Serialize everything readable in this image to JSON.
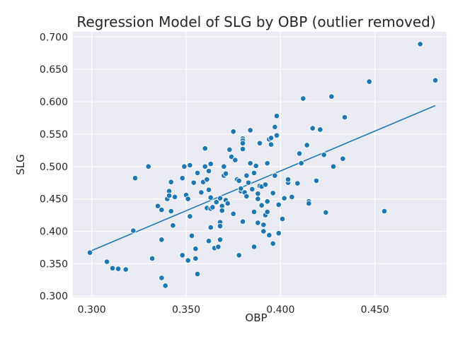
{
  "chart_data": {
    "type": "scatter",
    "title": "Regression Model of SLG by OBP (outlier removed)",
    "xlabel": "OBP",
    "ylabel": "SLG",
    "xlim": [
      0.29,
      0.488
    ],
    "ylim": [
      0.298,
      0.708
    ],
    "xticks": [
      0.3,
      0.35,
      0.4,
      0.45
    ],
    "yticks": [
      0.3,
      0.35,
      0.4,
      0.45,
      0.5,
      0.55,
      0.6,
      0.65,
      0.7
    ],
    "xtick_labels": [
      "0.300",
      "0.350",
      "0.400",
      "0.450"
    ],
    "ytick_labels": [
      "0.300",
      "0.350",
      "0.400",
      "0.450",
      "0.500",
      "0.550",
      "0.600",
      "0.650",
      "0.700"
    ],
    "grid": true,
    "background": "#eaeaf2",
    "point_color": "#1f77b4",
    "line_color": "#1f77b4",
    "points": [
      [
        0.299,
        0.367
      ],
      [
        0.308,
        0.353
      ],
      [
        0.311,
        0.343
      ],
      [
        0.314,
        0.342
      ],
      [
        0.318,
        0.341
      ],
      [
        0.322,
        0.401
      ],
      [
        0.323,
        0.482
      ],
      [
        0.33,
        0.5
      ],
      [
        0.332,
        0.358
      ],
      [
        0.335,
        0.439
      ],
      [
        0.337,
        0.433
      ],
      [
        0.337,
        0.387
      ],
      [
        0.337,
        0.328
      ],
      [
        0.339,
        0.316
      ],
      [
        0.34,
        0.45
      ],
      [
        0.341,
        0.462
      ],
      [
        0.341,
        0.455
      ],
      [
        0.342,
        0.431
      ],
      [
        0.342,
        0.476
      ],
      [
        0.343,
        0.409
      ],
      [
        0.344,
        0.453
      ],
      [
        0.348,
        0.482
      ],
      [
        0.348,
        0.363
      ],
      [
        0.349,
        0.5
      ],
      [
        0.35,
        0.456
      ],
      [
        0.351,
        0.355
      ],
      [
        0.351,
        0.45
      ],
      [
        0.352,
        0.502
      ],
      [
        0.352,
        0.423
      ],
      [
        0.353,
        0.393
      ],
      [
        0.354,
        0.475
      ],
      [
        0.355,
        0.373
      ],
      [
        0.355,
        0.358
      ],
      [
        0.356,
        0.334
      ],
      [
        0.356,
        0.49
      ],
      [
        0.358,
        0.46
      ],
      [
        0.359,
        0.476
      ],
      [
        0.36,
        0.528
      ],
      [
        0.36,
        0.5
      ],
      [
        0.361,
        0.48
      ],
      [
        0.361,
        0.436
      ],
      [
        0.362,
        0.385
      ],
      [
        0.362,
        0.493
      ],
      [
        0.362,
        0.464
      ],
      [
        0.363,
        0.452
      ],
      [
        0.363,
        0.435
      ],
      [
        0.363,
        0.504
      ],
      [
        0.363,
        0.406
      ],
      [
        0.364,
        0.437
      ],
      [
        0.365,
        0.374
      ],
      [
        0.366,
        0.445
      ],
      [
        0.367,
        0.376
      ],
      [
        0.368,
        0.414
      ],
      [
        0.368,
        0.408
      ],
      [
        0.368,
        0.451
      ],
      [
        0.368,
        0.387
      ],
      [
        0.369,
        0.439
      ],
      [
        0.369,
        0.432
      ],
      [
        0.37,
        0.486
      ],
      [
        0.37,
        0.5
      ],
      [
        0.371,
        0.489
      ],
      [
        0.371,
        0.448
      ],
      [
        0.372,
        0.443
      ],
      [
        0.373,
        0.526
      ],
      [
        0.374,
        0.515
      ],
      [
        0.375,
        0.554
      ],
      [
        0.375,
        0.427
      ],
      [
        0.376,
        0.51
      ],
      [
        0.377,
        0.48
      ],
      [
        0.378,
        0.478
      ],
      [
        0.378,
        0.363
      ],
      [
        0.379,
        0.462
      ],
      [
        0.379,
        0.466
      ],
      [
        0.38,
        0.543
      ],
      [
        0.38,
        0.54
      ],
      [
        0.38,
        0.536
      ],
      [
        0.38,
        0.527
      ],
      [
        0.38,
        0.415
      ],
      [
        0.381,
        0.46
      ],
      [
        0.382,
        0.486
      ],
      [
        0.382,
        0.454
      ],
      [
        0.383,
        0.475
      ],
      [
        0.384,
        0.556
      ],
      [
        0.384,
        0.505
      ],
      [
        0.385,
        0.465
      ],
      [
        0.386,
        0.49
      ],
      [
        0.386,
        0.43
      ],
      [
        0.386,
        0.376
      ],
      [
        0.387,
        0.501
      ],
      [
        0.388,
        0.458
      ],
      [
        0.388,
        0.45
      ],
      [
        0.388,
        0.413
      ],
      [
        0.389,
        0.536
      ],
      [
        0.389,
        0.47
      ],
      [
        0.39,
        0.469
      ],
      [
        0.39,
        0.44
      ],
      [
        0.391,
        0.41
      ],
      [
        0.391,
        0.4
      ],
      [
        0.392,
        0.425
      ],
      [
        0.392,
        0.472
      ],
      [
        0.393,
        0.43
      ],
      [
        0.393,
        0.505
      ],
      [
        0.393,
        0.446
      ],
      [
        0.394,
        0.394
      ],
      [
        0.394,
        0.542
      ],
      [
        0.395,
        0.544
      ],
      [
        0.395,
        0.534
      ],
      [
        0.396,
        0.381
      ],
      [
        0.396,
        0.459
      ],
      [
        0.397,
        0.486
      ],
      [
        0.397,
        0.561
      ],
      [
        0.398,
        0.548
      ],
      [
        0.398,
        0.578
      ],
      [
        0.399,
        0.397
      ],
      [
        0.399,
        0.441
      ],
      [
        0.401,
        0.419
      ],
      [
        0.402,
        0.451
      ],
      [
        0.404,
        0.475
      ],
      [
        0.404,
        0.48
      ],
      [
        0.406,
        0.453
      ],
      [
        0.409,
        0.474
      ],
      [
        0.41,
        0.52
      ],
      [
        0.411,
        0.505
      ],
      [
        0.412,
        0.605
      ],
      [
        0.414,
        0.533
      ],
      [
        0.415,
        0.446
      ],
      [
        0.415,
        0.443
      ],
      [
        0.417,
        0.559
      ],
      [
        0.419,
        0.478
      ],
      [
        0.421,
        0.557
      ],
      [
        0.423,
        0.518
      ],
      [
        0.424,
        0.429
      ],
      [
        0.427,
        0.608
      ],
      [
        0.428,
        0.5
      ],
      [
        0.433,
        0.512
      ],
      [
        0.434,
        0.576
      ],
      [
        0.447,
        0.631
      ],
      [
        0.455,
        0.431
      ],
      [
        0.474,
        0.689
      ],
      [
        0.482,
        0.633
      ]
    ],
    "regression_line": {
      "x": [
        0.299,
        0.482
      ],
      "y": [
        0.369,
        0.594
      ]
    }
  }
}
